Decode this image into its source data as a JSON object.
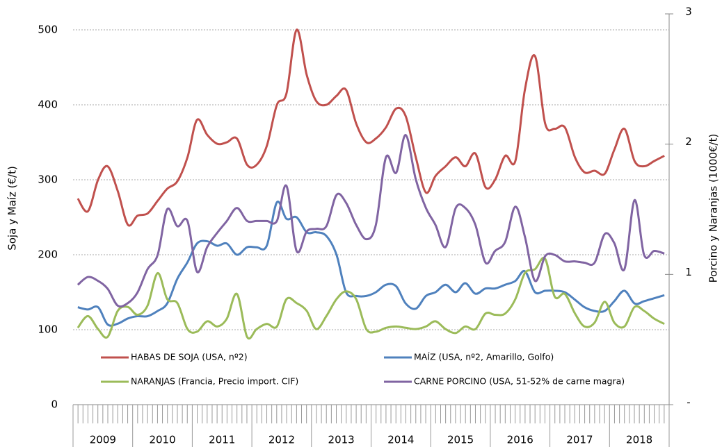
{
  "chart_data": {
    "type": "line",
    "ylabel": "Soja y Maíz (€/t)",
    "y2label": "Porcino y Naranjas (1000€/t)",
    "x": [
      2009.08,
      2009.25,
      2009.42,
      2009.58,
      2009.75,
      2009.92,
      2010.08,
      2010.25,
      2010.42,
      2010.58,
      2010.75,
      2010.92,
      2011.08,
      2011.25,
      2011.42,
      2011.58,
      2011.75,
      2011.92,
      2012.08,
      2012.25,
      2012.42,
      2012.58,
      2012.75,
      2012.92,
      2013.08,
      2013.25,
      2013.42,
      2013.58,
      2013.75,
      2013.92,
      2014.08,
      2014.25,
      2014.42,
      2014.58,
      2014.75,
      2014.92,
      2015.08,
      2015.25,
      2015.42,
      2015.58,
      2015.75,
      2015.92,
      2016.08,
      2016.25,
      2016.42,
      2016.58,
      2016.75,
      2016.92,
      2017.08,
      2017.25,
      2017.42,
      2017.58,
      2017.75,
      2017.92,
      2018.08,
      2018.25,
      2018.42,
      2018.58,
      2018.75,
      2018.92
    ],
    "xlim": [
      2009,
      2019
    ],
    "xticks": [
      {
        "value": 2009.5,
        "label": "2009"
      },
      {
        "value": 2010.5,
        "label": "2010"
      },
      {
        "value": 2011.5,
        "label": "2011"
      },
      {
        "value": 2012.5,
        "label": "2012"
      },
      {
        "value": 2013.5,
        "label": "2013"
      },
      {
        "value": 2014.5,
        "label": "2014"
      },
      {
        "value": 2015.5,
        "label": "2015"
      },
      {
        "value": 2016.5,
        "label": "2016"
      },
      {
        "value": 2017.5,
        "label": "2017"
      },
      {
        "value": 2018.5,
        "label": "2018"
      }
    ],
    "ylim": [
      0,
      521.3
    ],
    "yticks": [
      0,
      100,
      200,
      300,
      400,
      500
    ],
    "y2lim": [
      0,
      3
    ],
    "y2ticks": [
      {
        "value": 0,
        "label": "-"
      },
      1,
      2,
      3
    ],
    "grid": true,
    "series": [
      {
        "name": "HABAS DE SOJA (USA, nº2)",
        "color": "#c0504d",
        "values": [
          275,
          258,
          300,
          318,
          285,
          240,
          252,
          255,
          272,
          288,
          298,
          330,
          380,
          360,
          348,
          350,
          355,
          320,
          320,
          345,
          400,
          415,
          500,
          440,
          405,
          400,
          412,
          420,
          375,
          350,
          355,
          370,
          395,
          385,
          330,
          283,
          305,
          318,
          330,
          318,
          335,
          290,
          300,
          332,
          325,
          420,
          465,
          375,
          368,
          370,
          330,
          310,
          312,
          308,
          340,
          368,
          325,
          318,
          325,
          332
        ]
      },
      {
        "name": "MAÍZ (USA, nº2, Amarillo, Golfo)",
        "color": "#4f81bd",
        "values": [
          130,
          127,
          130,
          107,
          108,
          115,
          118,
          118,
          125,
          135,
          168,
          190,
          215,
          218,
          212,
          215,
          200,
          210,
          210,
          212,
          270,
          248,
          250,
          230,
          230,
          225,
          200,
          150,
          145,
          145,
          150,
          160,
          158,
          135,
          128,
          145,
          150,
          160,
          150,
          162,
          148,
          155,
          155,
          160,
          165,
          178,
          150,
          152,
          152,
          150,
          140,
          130,
          125,
          125,
          138,
          152,
          135,
          138,
          142,
          146
        ]
      },
      {
        "name": "NARANJAS (Francia, Precio import. CIF)",
        "color": "#9bbb59",
        "axis": "y2",
        "values": [
          0.59,
          0.68,
          0.58,
          0.52,
          0.72,
          0.75,
          0.69,
          0.76,
          1.01,
          0.81,
          0.78,
          0.58,
          0.56,
          0.64,
          0.6,
          0.66,
          0.85,
          0.52,
          0.58,
          0.62,
          0.6,
          0.81,
          0.78,
          0.72,
          0.58,
          0.68,
          0.81,
          0.87,
          0.81,
          0.58,
          0.56,
          0.59,
          0.6,
          0.59,
          0.58,
          0.6,
          0.64,
          0.58,
          0.55,
          0.6,
          0.58,
          0.7,
          0.69,
          0.7,
          0.81,
          1.01,
          1.04,
          1.12,
          0.83,
          0.85,
          0.7,
          0.6,
          0.63,
          0.79,
          0.63,
          0.6,
          0.75,
          0.72,
          0.66,
          0.62
        ]
      },
      {
        "name": "CARNE PORCINO (USA, 51-52% de carne magra)",
        "color": "#8064a2",
        "axis": "y2",
        "values": [
          0.92,
          0.98,
          0.95,
          0.89,
          0.76,
          0.78,
          0.86,
          1.04,
          1.15,
          1.5,
          1.37,
          1.41,
          1.02,
          1.21,
          1.32,
          1.41,
          1.51,
          1.41,
          1.41,
          1.41,
          1.41,
          1.68,
          1.18,
          1.33,
          1.35,
          1.37,
          1.61,
          1.55,
          1.38,
          1.27,
          1.38,
          1.9,
          1.78,
          2.07,
          1.73,
          1.51,
          1.38,
          1.21,
          1.51,
          1.51,
          1.38,
          1.09,
          1.18,
          1.25,
          1.52,
          1.29,
          0.95,
          1.14,
          1.15,
          1.1,
          1.1,
          1.09,
          1.09,
          1.31,
          1.24,
          1.04,
          1.57,
          1.15,
          1.18,
          1.16
        ]
      }
    ]
  }
}
